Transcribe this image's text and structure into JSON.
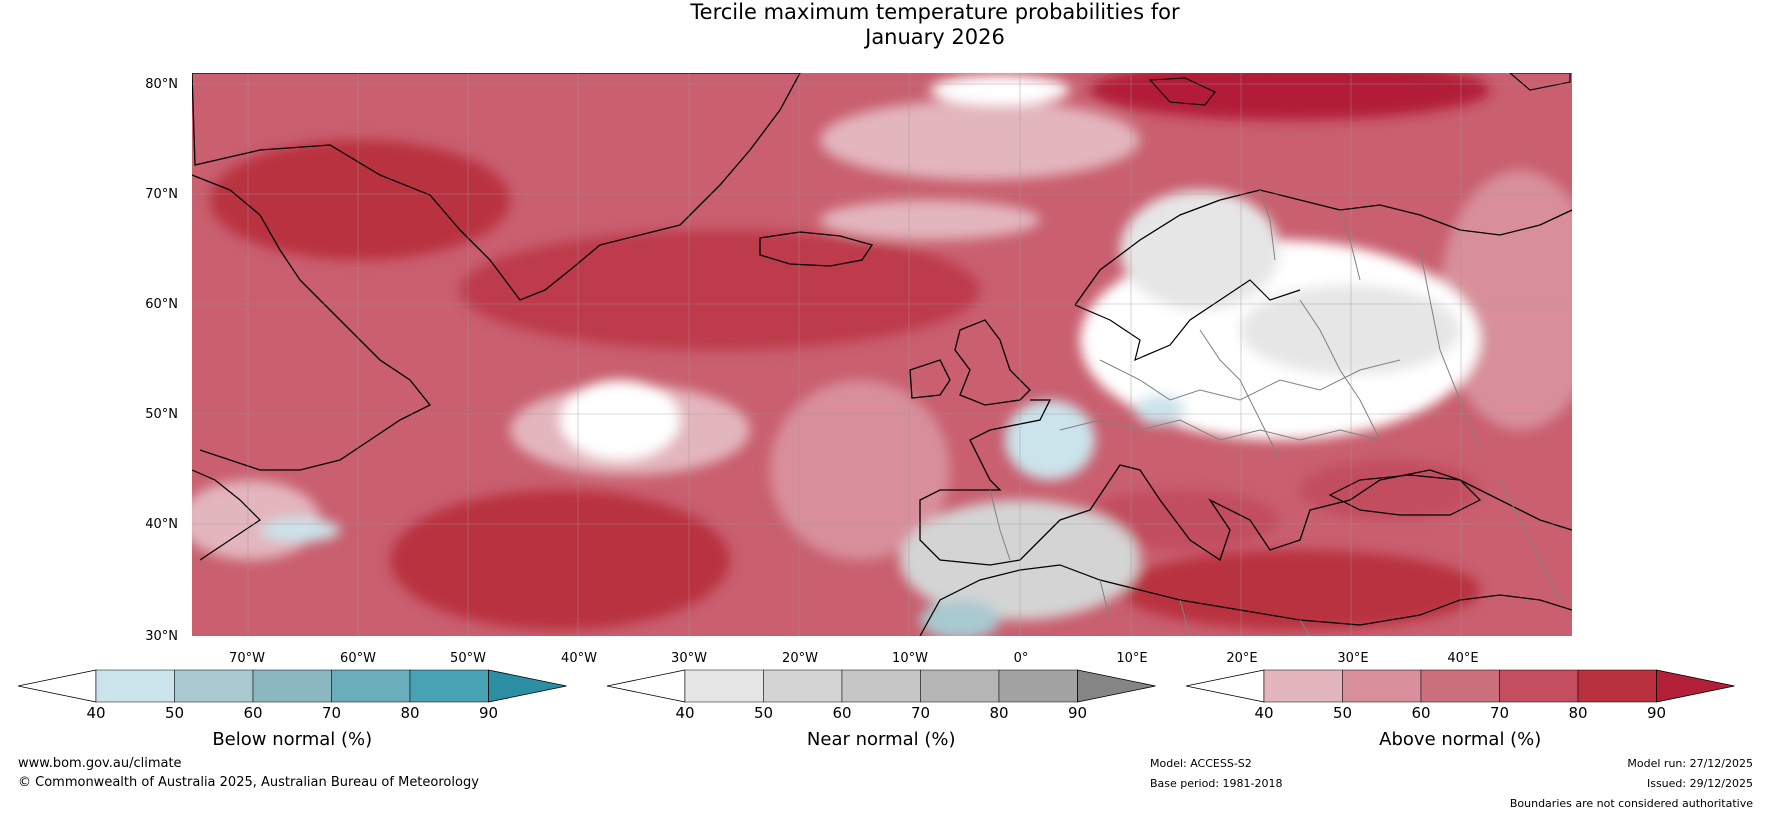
{
  "title_line1": "Tercile maximum temperature probabilities for",
  "title_line2": "January 2026",
  "map": {
    "lat_labels": [
      "80°N",
      "70°N",
      "60°N",
      "50°N",
      "40°N",
      "30°N"
    ],
    "lon_labels": [
      "70°W",
      "60°W",
      "50°W",
      "40°W",
      "30°W",
      "20°W",
      "10°W",
      "0°",
      "10°E",
      "20°E",
      "30°E",
      "40°E"
    ],
    "regions": [
      "Greenland",
      "Iceland",
      "Scandinavia",
      "British Isles",
      "Iberia",
      "Europe",
      "Black Sea",
      "Mediterranean",
      "North Africa",
      "Newfoundland"
    ]
  },
  "colorbars": [
    {
      "label": "Below normal (%)",
      "ticks": [
        "40",
        "50",
        "60",
        "70",
        "80",
        "90"
      ],
      "colors": [
        "#ffffff",
        "#cbe3ea",
        "#a9c9d0",
        "#8ab7c0",
        "#6aadbb",
        "#47a2b3",
        "#2b8ea3"
      ]
    },
    {
      "label": "Near normal (%)",
      "ticks": [
        "40",
        "50",
        "60",
        "70",
        "80",
        "90"
      ],
      "colors": [
        "#ffffff",
        "#e6e6e6",
        "#d4d4d4",
        "#c6c6c6",
        "#b4b5b4",
        "#a3a3a3",
        "#858585"
      ]
    },
    {
      "label": "Above normal (%)",
      "ticks": [
        "40",
        "50",
        "60",
        "70",
        "80",
        "90"
      ],
      "colors": [
        "#ffffff",
        "#e3b5bd",
        "#d88f9b",
        "#cc6f7c",
        "#c24e5f",
        "#b9303f",
        "#b21f37"
      ]
    }
  ],
  "footer": {
    "website": "www.bom.gov.au/climate",
    "copyright": "© Commonwealth of Australia 2025, Australian Bureau of Meteorology",
    "model": "Model: ACCESS-S2",
    "base_period": "Base period: 1981-2018",
    "model_run": "Model run: 27/12/2025",
    "issued": "Issued: 29/12/2025",
    "boundaries": "Boundaries are not considered authoritative"
  }
}
